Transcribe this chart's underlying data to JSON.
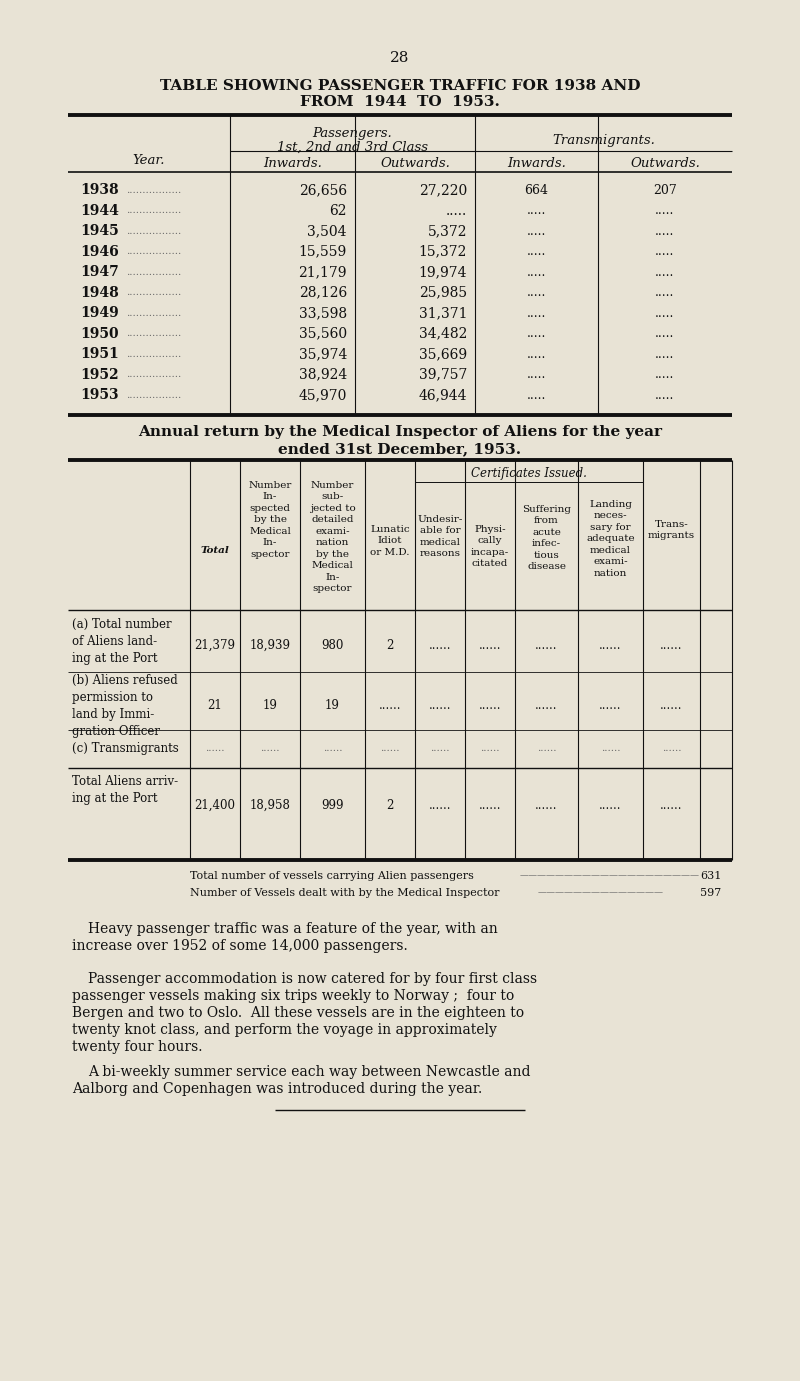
{
  "bg_color": "#e8e3d5",
  "page_number": "28",
  "title1": "TABLE SHOWING PASSENGER TRAFFIC FOR 1938 AND",
  "title2": "FROM  1944  TO  1953.",
  "table1_years": [
    "1938",
    "1944",
    "1945",
    "1946",
    "1947",
    "1948",
    "1949",
    "1950",
    "1951",
    "1952",
    "1953"
  ],
  "table1_inwards": [
    "26,656",
    "62",
    "3,504",
    "15,559",
    "21,179",
    "28,126",
    "33,598",
    "35,560",
    "35,974",
    "38,924",
    "45,970"
  ],
  "table1_outwards": [
    "27,220",
    ".....",
    "5,372",
    "15,372",
    "19,974",
    "25,985",
    "31,371",
    "34,482",
    "35,669",
    "39,757",
    "46,944"
  ],
  "table1_trans_in": [
    "664",
    ".....",
    ".....",
    ".....",
    ".....",
    ".....",
    ".....",
    ".....",
    ".....",
    ".....",
    "....."
  ],
  "table1_trans_out": [
    "207",
    ".....",
    ".....",
    ".....",
    ".....",
    ".....",
    ".....",
    ".....",
    ".....",
    ".....",
    "....."
  ],
  "annual_title1": "Annual return by the Medical Inspector of Aliens for the year",
  "annual_title2": "ended 31st December, 1953.",
  "table2_row_a_label": "(a) Total number\nof Aliens land-\ning at the Port",
  "table2_row_b_label": "(b) Aliens refused\npermission to\nland by Immi-\ngration Officer",
  "table2_row_c_label": "(c) Transmigrants",
  "table2_row_total_label": "Total Aliens arriv-\ning at the Port",
  "table2_row_a": [
    "21,379",
    "18,939",
    "980",
    "2",
    "......",
    "......",
    "......",
    "......",
    "......"
  ],
  "table2_row_b": [
    "21",
    "19",
    "19",
    "......",
    "......",
    "......",
    "......",
    "......",
    "......"
  ],
  "table2_row_c": [
    "......",
    "......",
    "......",
    "......",
    "......",
    "......",
    "......",
    "......",
    "......"
  ],
  "table2_row_total": [
    "21,400",
    "18,958",
    "999",
    "2",
    "......",
    "......",
    "......",
    "......",
    "......"
  ],
  "fn1_text": "Total number of vessels carrying Alien passengers",
  "fn1_dots": "————————————————————",
  "fn1_num": "631",
  "fn2_text": "Number of Vessels dealt with by the Medical Inspector",
  "fn2_dots": "——————————————",
  "fn2_num": "597",
  "p1_lines": [
    "Heavy passenger traffic was a feature of the year, with an",
    "increase over 1952 of some 14,000 passengers."
  ],
  "p2_lines": [
    "Passenger accommodation is now catered for by four first class",
    "passenger vessels making six trips weekly to Norway ;  four to",
    "Bergen and two to Oslo.  All these vessels are in the eighteen to",
    "twenty knot class, and perform the voyage in approximately",
    "twenty four hours."
  ],
  "p3_lines": [
    "A bi-weekly summer service each way between Newcastle and",
    "Aalborg and Copenhagen was introduced during the year."
  ]
}
